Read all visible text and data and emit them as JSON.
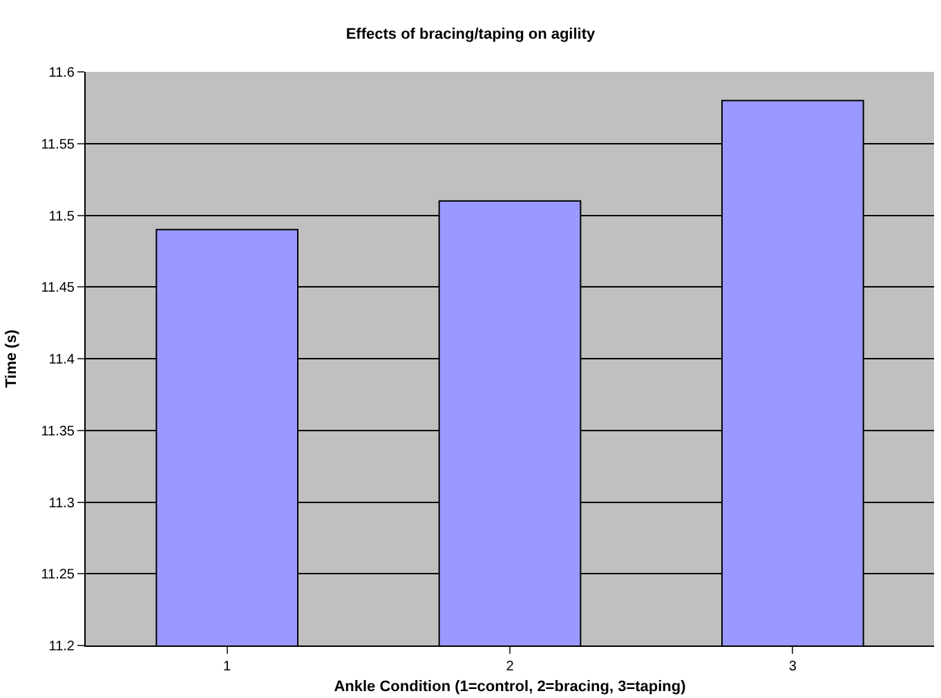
{
  "chart_data": {
    "type": "bar",
    "title": "Effects of bracing/taping on agility",
    "xlabel": "Ankle Condition (1=control, 2=bracing, 3=taping)",
    "ylabel": "Time (s)",
    "categories": [
      "1",
      "2",
      "3"
    ],
    "values": [
      11.49,
      11.51,
      11.58
    ],
    "color": "#9999ff",
    "ylim": [
      11.2,
      11.6
    ],
    "yticks": [
      11.2,
      11.25,
      11.3,
      11.35,
      11.4,
      11.45,
      11.5,
      11.55,
      11.6
    ],
    "grid": "y"
  }
}
